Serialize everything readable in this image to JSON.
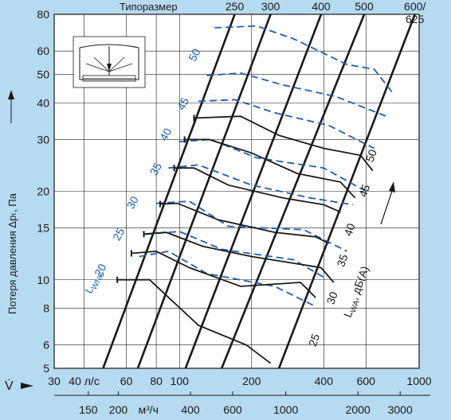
{
  "colors": {
    "background": "#b6daf0",
    "plot_bg": "#ffffff",
    "grid": "#1a1a1a",
    "black_lines": "#1a1a1a",
    "blue_lines": "#1f5fb0"
  },
  "header": {
    "size_label": "Типоразмер"
  },
  "axes": {
    "ylabel": "Потеря давления Δpₜ, Па",
    "x_prefix": "V̇",
    "lps_unit_label": "40 л/с",
    "m3h_unit_label": "м³/ч",
    "lwa_label": "L",
    "lwa_sub": "WA",
    "lwa_unit": ", дБ(A)",
    "lwnc_label": "L",
    "lwnc_sub": "WNC"
  },
  "chart_data": {
    "type": "line",
    "x_scale": "log",
    "y_scale": "log",
    "xlim_lps": [
      30,
      1000
    ],
    "ylim_pa": [
      5,
      80
    ],
    "x_ticks_lps": [
      {
        "v": 30,
        "label": "30"
      },
      {
        "v": 40,
        "label": "40 л/с"
      },
      {
        "v": 60,
        "label": "60"
      },
      {
        "v": 80,
        "label": "80"
      },
      {
        "v": 100,
        "label": "100"
      },
      {
        "v": 200,
        "label": "200"
      },
      {
        "v": 400,
        "label": "400"
      },
      {
        "v": 600,
        "label": "600"
      },
      {
        "v": 1000,
        "label": "1000"
      }
    ],
    "x_ticks_m3h": [
      {
        "v": 150,
        "label": "150"
      },
      {
        "v": 200,
        "label": "200"
      },
      {
        "v": 400,
        "label": "400"
      },
      {
        "v": 600,
        "label": "600"
      },
      {
        "v": 1000,
        "label": "1000"
      },
      {
        "v": 2000,
        "label": "2000"
      },
      {
        "v": 3000,
        "label": "3000"
      }
    ],
    "y_ticks": [
      5,
      6,
      8,
      10,
      15,
      20,
      30,
      40,
      50,
      60,
      80
    ],
    "sizes": [
      {
        "label": "250",
        "points": [
          [
            48,
            5
          ],
          [
            170,
            80
          ]
        ]
      },
      {
        "label": "300",
        "points": [
          [
            67,
            5
          ],
          [
            240,
            80
          ]
        ]
      },
      {
        "label": "400",
        "points": [
          [
            106,
            5
          ],
          [
            390,
            80
          ]
        ]
      },
      {
        "label": "500",
        "points": [
          [
            150,
            5
          ],
          [
            590,
            80
          ]
        ]
      },
      {
        "label": "600/\n625",
        "points": [
          [
            260,
            5
          ],
          [
            960,
            80
          ]
        ]
      }
    ],
    "lwa_series": [
      {
        "name": "25",
        "points": [
          [
            55,
            10
          ],
          [
            75,
            10
          ],
          [
            120,
            7
          ],
          [
            190,
            6
          ],
          [
            240,
            5.2
          ]
        ]
      },
      {
        "name": "30",
        "points": [
          [
            63,
            12.3
          ],
          [
            80,
            12.5
          ],
          [
            110,
            11
          ],
          [
            180,
            9.5
          ],
          [
            320,
            9.8
          ],
          [
            370,
            8.7
          ]
        ]
      },
      {
        "name": "35",
        "points": [
          [
            71,
            14.3
          ],
          [
            88,
            14.5
          ],
          [
            125,
            13
          ],
          [
            200,
            12
          ],
          [
            390,
            11
          ],
          [
            440,
            9.8
          ]
        ]
      },
      {
        "name": "40",
        "points": [
          [
            83,
            18.1
          ],
          [
            98,
            18.2
          ],
          [
            145,
            16
          ],
          [
            250,
            14.5
          ],
          [
            370,
            14
          ],
          [
            420,
            13.3
          ]
        ]
      },
      {
        "name": "45",
        "points": [
          [
            95,
            24
          ],
          [
            115,
            24
          ],
          [
            160,
            21
          ],
          [
            270,
            19
          ],
          [
            400,
            18
          ],
          [
            470,
            17
          ]
        ]
      },
      {
        "name": "50",
        "points": [
          [
            105,
            30
          ],
          [
            133,
            30
          ],
          [
            200,
            27
          ],
          [
            310,
            23
          ],
          [
            470,
            21.5
          ],
          [
            540,
            19
          ]
        ]
      },
      {
        "name": "35-50 upper",
        "points": [
          [
            115,
            35.5
          ],
          [
            180,
            36
          ],
          [
            260,
            31
          ],
          [
            400,
            28
          ],
          [
            570,
            26.5
          ],
          [
            640,
            23.5
          ]
        ]
      }
    ],
    "lwnc_series": [
      {
        "name": "20",
        "points": [
          [
            68,
            12
          ],
          [
            90,
            12.5
          ],
          [
            130,
            10.5
          ],
          [
            250,
            9.5
          ],
          [
            360,
            8.2
          ]
        ]
      },
      {
        "name": "25",
        "points": [
          [
            73,
            14.3
          ],
          [
            100,
            14.6
          ],
          [
            150,
            12.7
          ],
          [
            300,
            11.7
          ],
          [
            400,
            10.2
          ]
        ]
      },
      {
        "name": "30",
        "points": [
          [
            80,
            18.2
          ],
          [
            110,
            18.5
          ],
          [
            160,
            15.2
          ],
          [
            330,
            14.8
          ],
          [
            500,
            12.5
          ]
        ]
      },
      {
        "name": "35",
        "points": [
          [
            90,
            24
          ],
          [
            120,
            24.6
          ],
          [
            200,
            21
          ],
          [
            350,
            19
          ],
          [
            530,
            18
          ]
        ]
      },
      {
        "name": "40",
        "points": [
          [
            100,
            29.5
          ],
          [
            135,
            30
          ],
          [
            210,
            26
          ],
          [
            400,
            24
          ],
          [
            600,
            20
          ]
        ]
      },
      {
        "name": "45",
        "points": [
          [
            120,
            40.5
          ],
          [
            170,
            41
          ],
          [
            250,
            37
          ],
          [
            420,
            33.5
          ],
          [
            650,
            28
          ]
        ]
      },
      {
        "name": "50",
        "points": [
          [
            130,
            49.5
          ],
          [
            180,
            50.5
          ],
          [
            270,
            46
          ],
          [
            450,
            42
          ],
          [
            730,
            36
          ]
        ]
      },
      {
        "name": "50 upper",
        "points": [
          [
            140,
            72
          ],
          [
            210,
            73
          ],
          [
            300,
            66
          ],
          [
            500,
            54
          ],
          [
            650,
            52
          ],
          [
            780,
            43
          ]
        ]
      }
    ],
    "labels": {
      "black": [
        {
          "t": "25",
          "x": 370,
          "y": 5.9
        },
        {
          "t": "30",
          "x": 440,
          "y": 8.2
        },
        {
          "t": "35",
          "x": 485,
          "y": 11
        },
        {
          "t": "40",
          "x": 520,
          "y": 14
        },
        {
          "t": "45",
          "x": 600,
          "y": 19
        },
        {
          "t": "50",
          "x": 640,
          "y": 25
        }
      ],
      "blue": [
        {
          "t": "20",
          "x": 47,
          "y": 10.2
        },
        {
          "t": "25",
          "x": 56,
          "y": 13.5
        },
        {
          "t": "30",
          "x": 64,
          "y": 17.3
        },
        {
          "t": "35",
          "x": 80,
          "y": 22.5
        },
        {
          "t": "40",
          "x": 88,
          "y": 29.5
        },
        {
          "t": "45",
          "x": 104,
          "y": 37.5
        },
        {
          "t": "50",
          "x": 116,
          "y": 55
        }
      ]
    }
  }
}
